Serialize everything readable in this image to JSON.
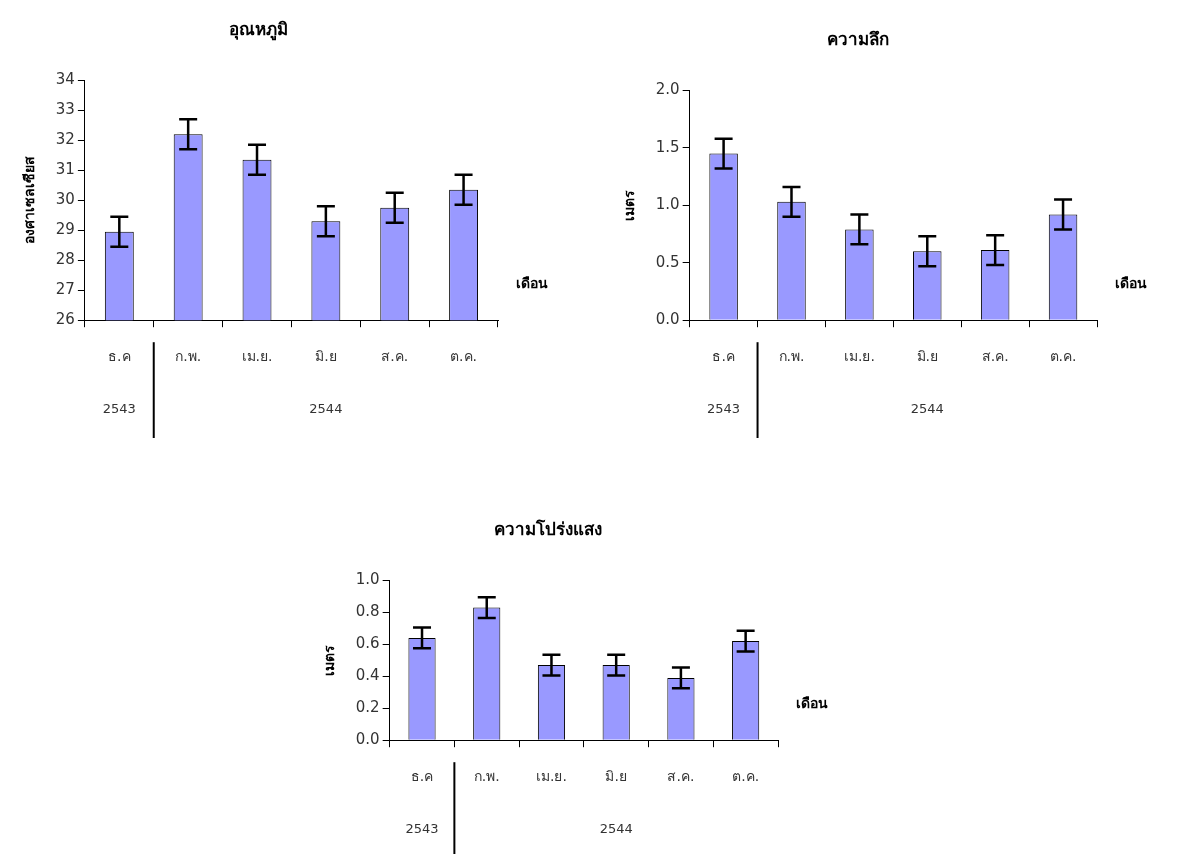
{
  "chart_data": [
    {
      "type": "bar",
      "title": "อุณหภูมิ",
      "xlabel": "เดือน",
      "ylabel": "องศาเซลเซียส",
      "categories": [
        "ธ.ค",
        "ก.พ.",
        "เม.ย.",
        "มิ.ย",
        "ส.ค.",
        "ต.ค."
      ],
      "series": [
        {
          "color": "#9999ff",
          "values": [
            28.95,
            32.2,
            31.35,
            29.3,
            29.75,
            30.35
          ],
          "errors": [
            0.5,
            0.5,
            0.5,
            0.5,
            0.5,
            0.5
          ]
        }
      ],
      "ylim": [
        26,
        34
      ],
      "yticks": [
        26,
        27,
        28,
        29,
        30,
        31,
        32,
        33,
        34
      ],
      "grid": false,
      "legend": false,
      "annotations": [
        "2543",
        "2544"
      ]
    },
    {
      "type": "bar",
      "title": "ความลึก",
      "xlabel": "เดือน",
      "ylabel": "เมตร",
      "categories": [
        "ธ.ค",
        "ก.พ.",
        "เม.ย.",
        "มิ.ย",
        "ส.ค.",
        "ต.ค."
      ],
      "series": [
        {
          "color": "#9999ff",
          "values": [
            1.45,
            1.03,
            0.79,
            0.6,
            0.61,
            0.92
          ],
          "errors": [
            0.13,
            0.13,
            0.13,
            0.13,
            0.13,
            0.13
          ]
        }
      ],
      "ylim": [
        0,
        2
      ],
      "yticks": [
        {
          "value": 0,
          "label": "0.0"
        },
        {
          "value": 0.5,
          "label": "0.5"
        },
        {
          "value": 1,
          "label": "1.0"
        },
        {
          "value": 1.5,
          "label": "1.5"
        },
        {
          "value": 2,
          "label": "2.0"
        }
      ],
      "grid": false,
      "legend": false,
      "annotations": [
        "2543",
        "2544"
      ]
    },
    {
      "type": "bar",
      "title": "ความโปร่งแสง",
      "xlabel": "เดือน",
      "ylabel": "เมตร",
      "categories": [
        "ธ.ค",
        "ก.พ.",
        "เม.ย.",
        "มิ.ย",
        "ส.ค.",
        "ต.ค."
      ],
      "series": [
        {
          "color": "#9999ff",
          "values": [
            0.64,
            0.83,
            0.47,
            0.47,
            0.39,
            0.62
          ],
          "errors": [
            0.065,
            0.065,
            0.065,
            0.065,
            0.065,
            0.065
          ]
        }
      ],
      "ylim": [
        0,
        1
      ],
      "yticks": [
        {
          "value": 0,
          "label": "0.0"
        },
        {
          "value": 0.2,
          "label": "0.2"
        },
        {
          "value": 0.4,
          "label": "0.4"
        },
        {
          "value": 0.6,
          "label": "0.6"
        },
        {
          "value": 0.8,
          "label": "0.8"
        },
        {
          "value": 1,
          "label": "1.0"
        }
      ],
      "grid": false,
      "legend": false,
      "annotations": [
        "2543",
        "2544"
      ]
    }
  ]
}
